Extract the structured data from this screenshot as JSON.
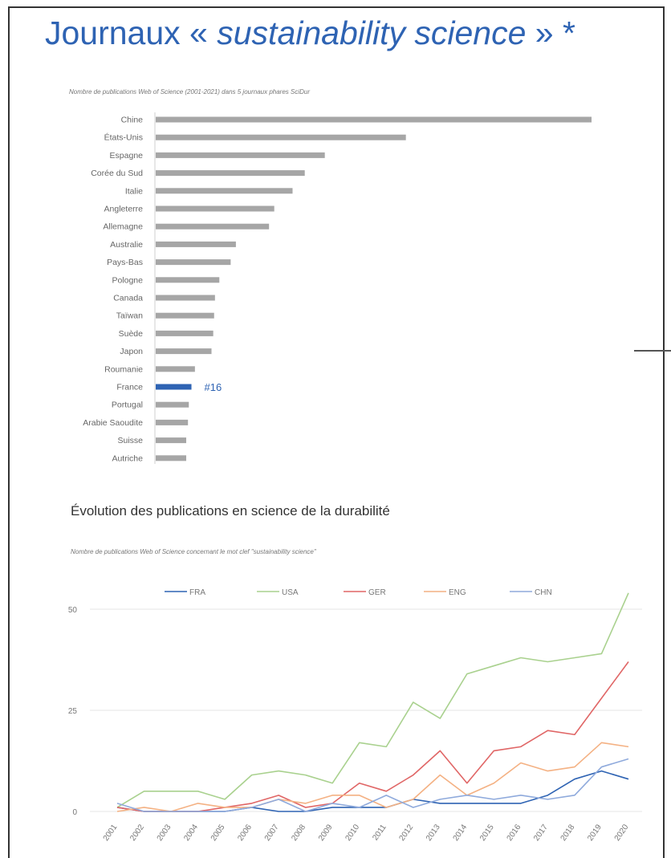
{
  "slide": {
    "title_main": "Journaux « ",
    "title_italic": "sustainability science",
    "title_end": " » *"
  },
  "chart_data": [
    {
      "type": "bar",
      "orientation": "horizontal",
      "title": "",
      "subtitle": "Nombre de publications Web of Science (2001-2021) dans 5 journaux phares SciDur",
      "categories": [
        "Chine",
        "États-Unis",
        "Espagne",
        "Corée du Sud",
        "Italie",
        "Angleterre",
        "Allemagne",
        "Australie",
        "Pays-Bas",
        "Pologne",
        "Canada",
        "Taïwan",
        "Suède",
        "Japon",
        "Roumanie",
        "France",
        "Portugal",
        "Arabie Saoudite",
        "Suisse",
        "Autriche"
      ],
      "values": [
        500,
        287,
        194,
        171,
        157,
        136,
        130,
        92,
        86,
        73,
        68,
        67,
        66,
        64,
        45,
        41,
        38,
        37,
        35,
        35
      ],
      "highlight": {
        "category": "France",
        "label": "#16",
        "color": "#2e63b3"
      },
      "bar_color": "#a6a6a6",
      "grid": false
    },
    {
      "type": "line",
      "title": "Évolution des publications en science de la durabilité",
      "subtitle": "Nombre de publications Web of Science concernant le mot clef \"sustainability science\"",
      "x": [
        "2001",
        "2002",
        "2003",
        "2004",
        "2005",
        "2006",
        "2007",
        "2008",
        "2009",
        "2010",
        "2011",
        "2012",
        "2013",
        "2014",
        "2015",
        "2016",
        "2017",
        "2018",
        "2019",
        "2020"
      ],
      "yticks": [
        "0",
        "25",
        "50"
      ],
      "ylim": [
        0,
        55
      ],
      "legend_position": "top",
      "grid": true,
      "series": [
        {
          "name": "FRA",
          "color": "#2e63b3",
          "values": [
            1,
            0,
            0,
            0,
            0,
            1,
            0,
            0,
            1,
            1,
            1,
            3,
            2,
            2,
            2,
            2,
            4,
            8,
            10,
            8
          ]
        },
        {
          "name": "USA",
          "color": "#a9d18e",
          "values": [
            1,
            5,
            5,
            5,
            3,
            9,
            10,
            9,
            7,
            17,
            16,
            27,
            23,
            34,
            36,
            38,
            37,
            38,
            39,
            54
          ]
        },
        {
          "name": "GER",
          "color": "#e06666",
          "values": [
            1,
            0,
            0,
            0,
            1,
            2,
            4,
            1,
            2,
            7,
            5,
            9,
            15,
            7,
            15,
            16,
            20,
            19,
            28,
            37
          ]
        },
        {
          "name": "ENG",
          "color": "#f4b183",
          "values": [
            0,
            1,
            0,
            2,
            1,
            1,
            3,
            2,
            4,
            4,
            1,
            3,
            9,
            4,
            7,
            12,
            10,
            11,
            17,
            16
          ]
        },
        {
          "name": "CHN",
          "color": "#8faadc",
          "values": [
            2,
            0,
            0,
            0,
            0,
            1,
            3,
            0,
            2,
            1,
            4,
            1,
            3,
            4,
            3,
            4,
            3,
            4,
            11,
            13
          ]
        }
      ]
    }
  ]
}
